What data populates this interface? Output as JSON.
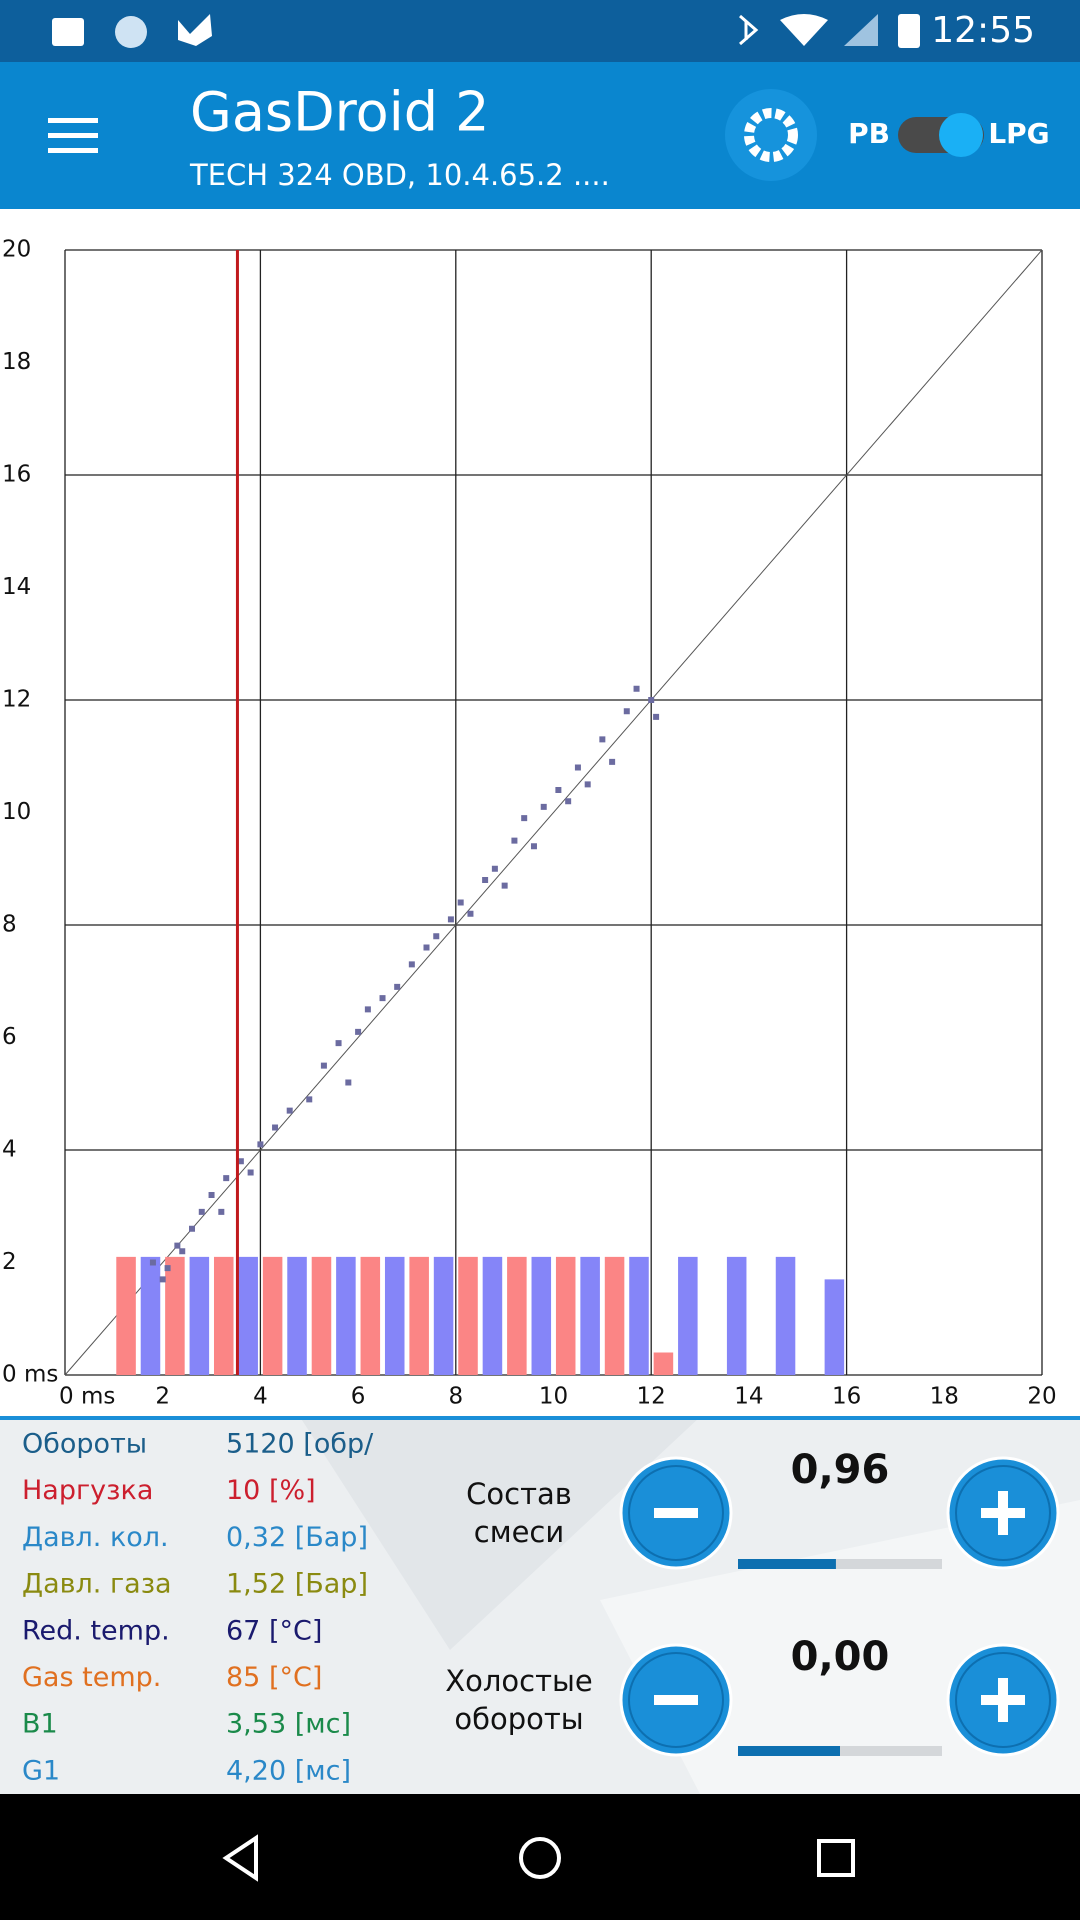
{
  "status_bar": {
    "time": "12:55"
  },
  "app_bar": {
    "title": "GasDroid 2",
    "subtitle": "TECH 324 OBD, 10.4.65.2 ....",
    "toggle_left": "PB",
    "toggle_right": "LPG"
  },
  "chart_data": {
    "type": "scatter",
    "xlim": [
      0,
      20
    ],
    "ylim": [
      0,
      20
    ],
    "xticks": [
      {
        "value": 0,
        "label": "0 ms"
      },
      2,
      4,
      6,
      8,
      10,
      12,
      14,
      16,
      18,
      20
    ],
    "yticks": [
      {
        "value": 0,
        "label": "0 ms"
      },
      2,
      4,
      6,
      8,
      10,
      12,
      14,
      16,
      18,
      20
    ],
    "grid": true,
    "marker_x": 3.53,
    "marker_color": "#c0191c",
    "bars": [
      {
        "color": "#fb8585",
        "x": [
          1.25,
          2.25,
          3.25,
          4.25,
          5.25,
          6.25,
          7.25,
          8.25,
          9.25,
          10.25,
          11.25,
          12.25
        ],
        "values": [
          2.1,
          2.1,
          2.1,
          2.1,
          2.1,
          2.1,
          2.1,
          2.1,
          2.1,
          2.1,
          2.1,
          0.4
        ]
      },
      {
        "color": "#8585f8",
        "x": [
          1.75,
          2.75,
          3.75,
          4.75,
          5.75,
          6.75,
          7.75,
          8.75,
          9.75,
          10.75,
          11.75,
          12.75,
          13.75,
          14.75,
          15.75
        ],
        "values": [
          2.1,
          2.1,
          2.1,
          2.1,
          2.1,
          2.1,
          2.1,
          2.1,
          2.1,
          2.1,
          2.1,
          2.1,
          2.1,
          2.1,
          1.7
        ]
      }
    ],
    "points": {
      "color": "#6b6ba0",
      "x": [
        1.8,
        2.0,
        2.1,
        2.3,
        2.4,
        2.6,
        2.8,
        3.0,
        3.2,
        3.3,
        3.6,
        3.8,
        4.0,
        4.3,
        4.6,
        5.0,
        5.3,
        5.6,
        5.8,
        6.0,
        6.2,
        6.5,
        6.8,
        7.1,
        7.4,
        7.6,
        7.9,
        8.1,
        8.3,
        8.6,
        8.8,
        9.0,
        9.2,
        9.4,
        9.6,
        9.8,
        10.1,
        10.3,
        10.5,
        10.7,
        11.0,
        11.2,
        11.5,
        12.0,
        12.1,
        11.7
      ],
      "y": [
        2.0,
        1.7,
        1.9,
        2.3,
        2.2,
        2.6,
        2.9,
        3.2,
        2.9,
        3.5,
        3.8,
        3.6,
        4.1,
        4.4,
        4.7,
        4.9,
        5.5,
        5.9,
        5.2,
        6.1,
        6.5,
        6.7,
        6.9,
        7.3,
        7.6,
        7.8,
        8.1,
        8.4,
        8.2,
        8.8,
        9.0,
        8.7,
        9.5,
        9.9,
        9.4,
        10.1,
        10.4,
        10.2,
        10.8,
        10.5,
        11.3,
        10.9,
        11.8,
        12.0,
        11.7,
        12.2
      ]
    }
  },
  "readings": [
    {
      "label": "Обороты",
      "value": "5120 [обр/",
      "color": "#1b5e8a"
    },
    {
      "label": "Наргузка",
      "value": "10 [%]",
      "color": "#cc1f2e"
    },
    {
      "label": "Давл. кол.",
      "value": "0,32 [Бар]",
      "color": "#2a88c8"
    },
    {
      "label": "Давл. газа",
      "value": "1,52 [Бар]",
      "color": "#8a8a10"
    },
    {
      "label": "Red. temp.",
      "value": "67 [°C]",
      "color": "#1a1a6e"
    },
    {
      "label": "Gas temp.",
      "value": "85 [°C]",
      "color": "#e07020"
    },
    {
      "label": "B1",
      "value": "3,53 [мс]",
      "color": "#1a8a4a"
    },
    {
      "label": "G1",
      "value": "4,20 [мс]",
      "color": "#2a88c8"
    }
  ],
  "controls": [
    {
      "label": [
        "Состав",
        "смеси"
      ],
      "value": "0,96",
      "level": 0.48
    },
    {
      "label": [
        "Холостые",
        "обороты"
      ],
      "value": "0,00",
      "level": 0.5
    }
  ]
}
